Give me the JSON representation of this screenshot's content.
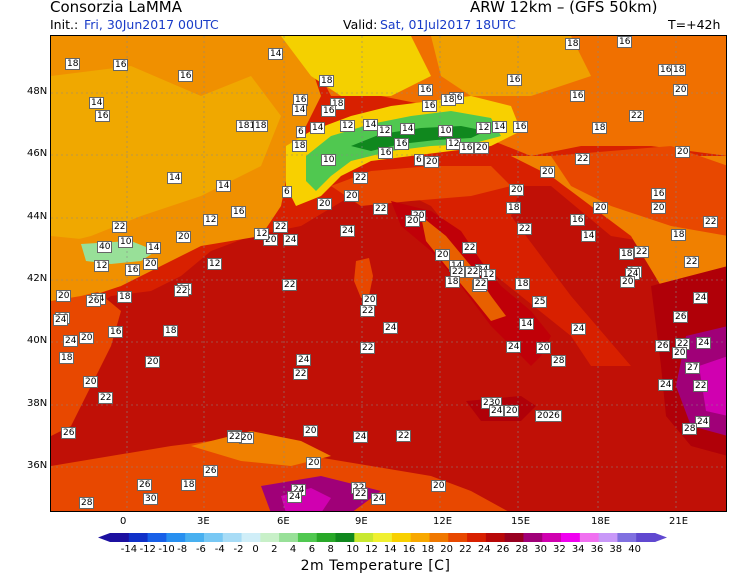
{
  "header": {
    "source": "Consorzia LaMMA",
    "model": "ARW 12km  –  (GFS 50km)",
    "init_label": "Init.:",
    "init_value": "Fri, 30Jun2017  00UTC",
    "valid_label": "Valid:",
    "valid_value": "Sat,  01Jul2017  18UTC",
    "forecast_step": "T=+42h"
  },
  "map": {
    "lat_labels": [
      "48N",
      "46N",
      "44N",
      "42N",
      "40N",
      "38N",
      "36N"
    ],
    "lon_labels": [
      "0",
      "3E",
      "6E",
      "9E",
      "12E",
      "15E",
      "18E",
      "21E"
    ],
    "stations": [
      {
        "v": "14"
      },
      {
        "v": "18"
      },
      {
        "v": "16"
      },
      {
        "v": "18"
      },
      {
        "v": "16"
      },
      {
        "v": "16"
      },
      {
        "v": "16"
      },
      {
        "v": "18"
      },
      {
        "v": "18"
      },
      {
        "v": "14"
      },
      {
        "v": "16"
      },
      {
        "v": "16"
      },
      {
        "v": "16"
      },
      {
        "v": "16"
      },
      {
        "v": "14"
      },
      {
        "v": "18"
      },
      {
        "v": "16"
      },
      {
        "v": "18"
      },
      {
        "v": "16"
      },
      {
        "v": "20"
      },
      {
        "v": "16"
      },
      {
        "v": "16"
      },
      {
        "v": "1818"
      },
      {
        "v": "18"
      },
      {
        "v": "12"
      },
      {
        "v": "14"
      },
      {
        "v": "6"
      },
      {
        "v": "14"
      },
      {
        "v": "12"
      },
      {
        "v": "14"
      },
      {
        "v": "10"
      },
      {
        "v": "12"
      },
      {
        "v": "14"
      },
      {
        "v": "16"
      },
      {
        "v": "22"
      },
      {
        "v": "18"
      },
      {
        "v": "16"
      },
      {
        "v": "16"
      },
      {
        "v": "10"
      },
      {
        "v": "6"
      },
      {
        "v": "12"
      },
      {
        "v": "20"
      },
      {
        "v": "16"
      },
      {
        "v": "18"
      },
      {
        "v": "22"
      },
      {
        "v": "20"
      },
      {
        "v": "14"
      },
      {
        "v": "14"
      },
      {
        "v": "6"
      },
      {
        "v": "22"
      },
      {
        "v": "20"
      },
      {
        "v": "20"
      },
      {
        "v": "20"
      },
      {
        "v": "20"
      },
      {
        "v": "16"
      },
      {
        "v": "22"
      },
      {
        "v": "20"
      },
      {
        "v": "18"
      },
      {
        "v": "20"
      },
      {
        "v": "20"
      },
      {
        "v": "22"
      },
      {
        "v": "16"
      },
      {
        "v": "12"
      },
      {
        "v": "18"
      },
      {
        "v": "16"
      },
      {
        "v": "22"
      },
      {
        "v": "20"
      },
      {
        "v": "20"
      },
      {
        "v": "22"
      },
      {
        "v": "24"
      },
      {
        "v": "20"
      },
      {
        "v": "20"
      },
      {
        "v": "18"
      },
      {
        "v": "14"
      },
      {
        "v": "18"
      },
      {
        "v": "22"
      },
      {
        "v": "40"
      },
      {
        "v": "10"
      },
      {
        "v": "14"
      },
      {
        "v": "12"
      },
      {
        "v": "12"
      },
      {
        "v": "24"
      },
      {
        "v": "20"
      },
      {
        "v": "22"
      },
      {
        "v": "22"
      },
      {
        "v": "22"
      },
      {
        "v": "20"
      },
      {
        "v": "14"
      },
      {
        "v": "14"
      },
      {
        "v": "20"
      },
      {
        "v": "14"
      },
      {
        "v": "16"
      },
      {
        "v": "12"
      },
      {
        "v": "22"
      },
      {
        "v": "22"
      },
      {
        "v": "22"
      },
      {
        "v": "24"
      },
      {
        "v": "22"
      },
      {
        "v": "12"
      },
      {
        "v": "18"
      },
      {
        "v": "12"
      },
      {
        "v": "24"
      },
      {
        "v": "18"
      },
      {
        "v": "14"
      },
      {
        "v": "18"
      },
      {
        "v": "20"
      },
      {
        "v": "18"
      },
      {
        "v": "22"
      },
      {
        "v": "22"
      },
      {
        "v": "20"
      },
      {
        "v": "24"
      },
      {
        "v": "18"
      },
      {
        "v": "24"
      },
      {
        "v": "24"
      },
      {
        "v": "25"
      },
      {
        "v": "24"
      },
      {
        "v": "20"
      },
      {
        "v": "16"
      },
      {
        "v": "14"
      },
      {
        "v": "24"
      },
      {
        "v": "24"
      },
      {
        "v": "26"
      },
      {
        "v": "18"
      },
      {
        "v": "20"
      },
      {
        "v": "24"
      },
      {
        "v": "22"
      },
      {
        "v": "20"
      },
      {
        "v": "26"
      },
      {
        "v": "22"
      },
      {
        "v": "24"
      },
      {
        "v": "28"
      },
      {
        "v": "20"
      },
      {
        "v": "27"
      },
      {
        "v": "20"
      },
      {
        "v": "22"
      },
      {
        "v": "22"
      },
      {
        "v": "22"
      },
      {
        "v": "24"
      },
      {
        "v": "22"
      },
      {
        "v": "230"
      },
      {
        "v": "24"
      },
      {
        "v": "20"
      },
      {
        "v": "2026"
      },
      {
        "v": "26"
      },
      {
        "v": "20"
      },
      {
        "v": "22"
      },
      {
        "v": "20"
      },
      {
        "v": "24"
      },
      {
        "v": "22"
      },
      {
        "v": "24"
      },
      {
        "v": "28"
      },
      {
        "v": "26"
      },
      {
        "v": "18"
      },
      {
        "v": "20"
      },
      {
        "v": "24"
      },
      {
        "v": "22"
      },
      {
        "v": "22"
      },
      {
        "v": "20"
      },
      {
        "v": "26"
      },
      {
        "v": "24"
      },
      {
        "v": "30"
      },
      {
        "v": "24"
      },
      {
        "v": "28"
      },
      {
        "v": "26"
      }
    ]
  },
  "colorbar": {
    "labels": [
      "-14",
      "-12",
      "-10",
      "-8",
      "-6",
      "-4",
      "-2",
      "0",
      "2",
      "4",
      "6",
      "8",
      "10",
      "12",
      "14",
      "16",
      "18",
      "20",
      "22",
      "24",
      "26",
      "28",
      "30",
      "32",
      "34",
      "36",
      "38",
      "40"
    ],
    "colors": [
      "#1c10a0",
      "#1030c8",
      "#1860e8",
      "#2890f0",
      "#48b0f0",
      "#78c8f4",
      "#a8dcf6",
      "#d0eef8",
      "#c8f0c8",
      "#98e098",
      "#50c850",
      "#28a828",
      "#10881e",
      "#c8e830",
      "#f0f030",
      "#f8d000",
      "#f8a800",
      "#f07800",
      "#e84800",
      "#d82000",
      "#b80808",
      "#980020",
      "#a00078",
      "#d000b0",
      "#f000f0",
      "#f070f0",
      "#c898f8",
      "#8070e0",
      "#6048d0"
    ],
    "title": "2m Temperature [C]"
  }
}
